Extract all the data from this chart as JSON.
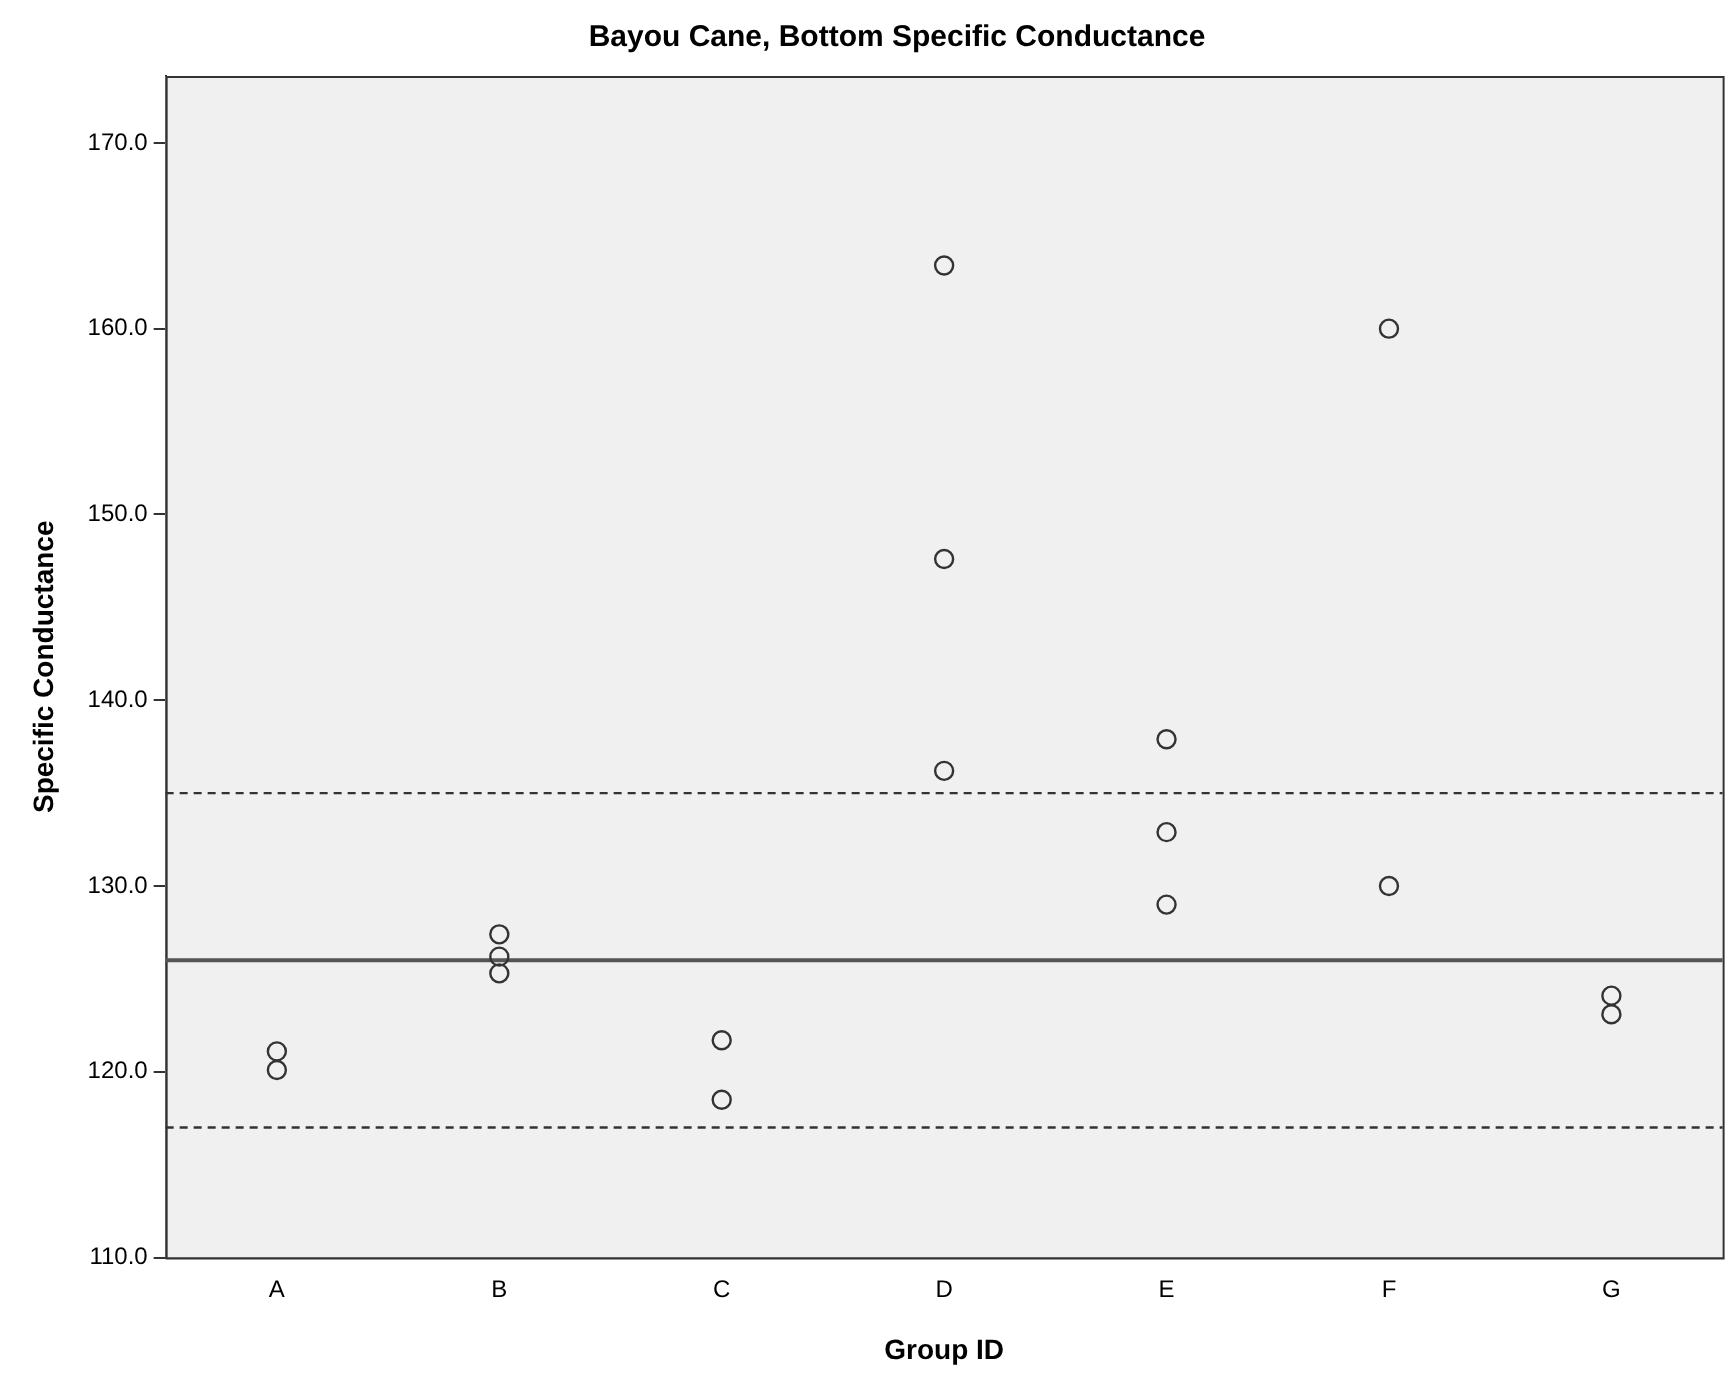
{
  "chart_data": {
    "type": "scatter",
    "title": "Bayou Cane, Bottom Specific Conductance",
    "xlabel": "Group ID",
    "ylabel": "Specific Conductance",
    "categories": [
      "A",
      "B",
      "C",
      "D",
      "E",
      "F",
      "G"
    ],
    "series": [
      {
        "color": "#333333",
        "x": [
          "A",
          "A",
          "B",
          "B",
          "B",
          "C",
          "C",
          "D",
          "D",
          "D",
          "E",
          "E",
          "E",
          "F",
          "F",
          "G",
          "G"
        ],
        "values": [
          121.1,
          120.1,
          127.4,
          126.2,
          125.3,
          121.7,
          118.5,
          163.4,
          147.6,
          136.2,
          137.9,
          132.9,
          129.0,
          160.0,
          130.0,
          124.1,
          123.1
        ]
      }
    ],
    "marker": "circle",
    "ylim": [
      110,
      173.6
    ],
    "yticks": [
      {
        "value": 110,
        "label": "110.0"
      },
      {
        "value": 120,
        "label": "120.0"
      },
      {
        "value": 130,
        "label": "130.0"
      },
      {
        "value": 140,
        "label": "140.0"
      },
      {
        "value": 150,
        "label": "150.0"
      },
      {
        "value": 160,
        "label": "160.0"
      },
      {
        "value": 170,
        "label": "170.0"
      }
    ],
    "ref_lines": [
      {
        "axis": "y",
        "value": 126,
        "color": "#555555",
        "line_style": "solid"
      },
      {
        "axis": "y",
        "value": 135,
        "color": "#333333",
        "line_style": "dashed"
      },
      {
        "axis": "y",
        "value": 117,
        "color": "#333333",
        "line_style": "dashed"
      }
    ],
    "grid": false,
    "legend": false
  }
}
